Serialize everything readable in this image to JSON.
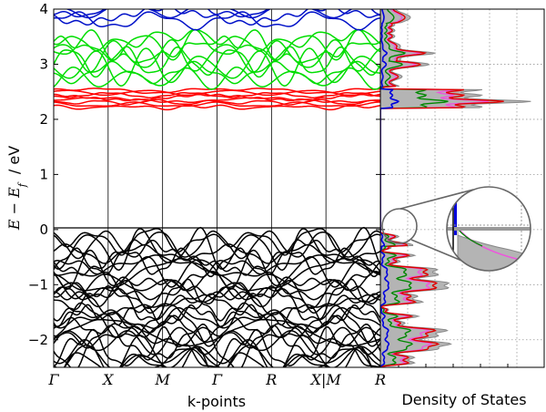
{
  "chart_data": {
    "type": "line",
    "title": "",
    "ylabel": "E − E_f   / eV",
    "ylabel_parts": {
      "main": "E − E",
      "sub": "f",
      "unit": "/  eV"
    },
    "ylim": [
      -2.5,
      4
    ],
    "yticks": [
      4,
      3,
      2,
      1,
      0,
      -1,
      -2
    ],
    "ytick_labels": [
      "4",
      "3",
      "2",
      "1",
      "0",
      "−1",
      "−2"
    ],
    "band_panel": {
      "xlabel": "k-points",
      "kpoints": [
        "Γ",
        "X",
        "M",
        "Γ",
        "R",
        "X|M",
        "R"
      ],
      "kpoint_positions": [
        0,
        1,
        2,
        3,
        4,
        5,
        6
      ],
      "series": [
        {
          "name": "conduction-blue",
          "color": "#0010c8",
          "energy_range": [
            3.45,
            4.0
          ]
        },
        {
          "name": "conduction-green",
          "color": "#00dd00",
          "energy_range": [
            2.6,
            3.5
          ]
        },
        {
          "name": "conduction-red",
          "color": "#ff0000",
          "energy_range": [
            2.2,
            2.55
          ]
        },
        {
          "name": "valence-black",
          "color": "#000000",
          "energy_range": [
            -2.5,
            0.0
          ]
        }
      ],
      "fermi_level": 0
    },
    "dos_panel": {
      "xlabel": "Density of States",
      "series": [
        {
          "name": "total",
          "color": "#999999",
          "fill": "#b4b4b4"
        },
        {
          "name": "pdos-red",
          "color": "#e00000"
        },
        {
          "name": "pdos-green",
          "color": "#008800"
        },
        {
          "name": "pdos-blue",
          "color": "#0000dd"
        },
        {
          "name": "pdos-magenta",
          "color": "#ee55dd"
        }
      ],
      "inset": "magnified view near E_f"
    }
  }
}
